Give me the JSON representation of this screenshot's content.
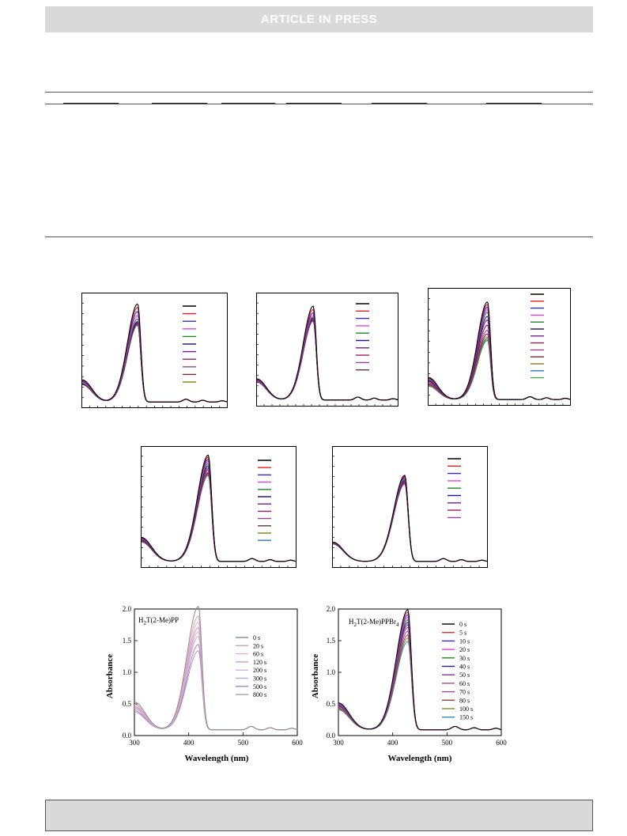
{
  "header": {
    "banner": "ARTICLE  IN  PRESS"
  },
  "colors": {
    "line": [
      "#000000",
      "#e0201e",
      "#2a2ad8",
      "#e040e0",
      "#1c8a1c",
      "#2c1a8a",
      "#7a1a8a",
      "#a01a50",
      "#9a40a0",
      "#6a3030",
      "#8a8a20",
      "#3070c0",
      "#40b040"
    ]
  },
  "chart_data": [
    {
      "type": "line",
      "panel": "a",
      "series_count": 11,
      "peak_x": 415,
      "peaks": [
        1.95,
        1.88,
        1.8,
        1.72,
        1.65,
        1.6,
        1.58,
        1.56,
        1.55,
        1.54,
        1.53
      ],
      "xlim": [
        300,
        600
      ],
      "ylim": [
        0,
        2.2
      ]
    },
    {
      "type": "line",
      "panel": "b",
      "series_count": 10,
      "peak_x": 420,
      "peaks": [
        1.72,
        1.66,
        1.6,
        1.55,
        1.52,
        1.5,
        1.48,
        1.47,
        1.46,
        1.45
      ],
      "xlim": [
        300,
        600
      ],
      "ylim": [
        0,
        2.0
      ]
    },
    {
      "type": "line",
      "panel": "c",
      "series_count": 13,
      "peak_x": 425,
      "peaks": [
        1.9,
        1.85,
        1.8,
        1.75,
        1.7,
        1.62,
        1.55,
        1.45,
        1.35,
        1.28,
        1.22,
        1.18,
        1.15
      ],
      "xlim": [
        300,
        600
      ],
      "ylim": [
        0,
        2.2
      ]
    },
    {
      "type": "line",
      "panel": "d",
      "series_count": 12,
      "peak_x": 430,
      "peaks": [
        2.0,
        1.96,
        1.92,
        1.88,
        1.84,
        1.8,
        1.76,
        1.72,
        1.68,
        1.66,
        1.64,
        1.62
      ],
      "xlim": [
        300,
        600
      ],
      "ylim": [
        0,
        2.2
      ]
    },
    {
      "type": "line",
      "panel": "e",
      "series_count": 9,
      "peak_x": 440,
      "peaks": [
        1.62,
        1.6,
        1.58,
        1.56,
        1.54,
        1.52,
        1.5,
        1.48,
        1.46
      ],
      "xlim": [
        300,
        600
      ],
      "ylim": [
        0,
        2.2
      ]
    },
    {
      "type": "line",
      "panel": "f",
      "annotation": "H2T(2-Me)PP",
      "annotation_main": "H",
      "annotation_sub": "2",
      "annotation_rest": "T(2-Me)PP",
      "xlabel": "Wavelength (nm)",
      "ylabel": "Absorbance",
      "xlim": [
        300,
        600
      ],
      "ylim": [
        0,
        2.0
      ],
      "xticks": [
        "300",
        "400",
        "500",
        "600"
      ],
      "yticks": [
        "0.0",
        "0.5",
        "1.0",
        "1.5",
        "2.0"
      ],
      "legend": [
        "0 s",
        "20 s",
        "60 s",
        "120 s",
        "200 s",
        "300 s",
        "500 s",
        "800 s"
      ],
      "series": [
        {
          "name": "0 s",
          "peak": 1.95
        },
        {
          "name": "20 s",
          "peak": 1.8
        },
        {
          "name": "60 s",
          "peak": 1.7
        },
        {
          "name": "120 s",
          "peak": 1.62
        },
        {
          "name": "200 s",
          "peak": 1.55
        },
        {
          "name": "300 s",
          "peak": 1.48
        },
        {
          "name": "500 s",
          "peak": 1.35
        },
        {
          "name": "800 s",
          "peak": 1.25
        }
      ]
    },
    {
      "type": "line",
      "panel": "g",
      "annotation": "H2T(2-Me)PPBr4",
      "annotation_main": "H",
      "annotation_sub": "2",
      "annotation_rest": "T(2-Me)PPBr",
      "annotation_sub2": "4",
      "xlabel": "Wavelength (nm)",
      "ylabel": "Absorbance",
      "xlim": [
        300,
        600
      ],
      "ylim": [
        0,
        2.0
      ],
      "xticks": [
        "300",
        "400",
        "500",
        "600"
      ],
      "yticks": [
        "0.0",
        "0.5",
        "1.0",
        "1.5",
        "2.0"
      ],
      "legend": [
        "0 s",
        "5 s",
        "10 s",
        "20 s",
        "30 s",
        "40 s",
        "50 s",
        "60 s",
        "70 s",
        "80 s",
        "100 s",
        "150 s"
      ],
      "series": [
        {
          "name": "0 s",
          "peak": 1.9
        },
        {
          "name": "5 s",
          "peak": 1.86
        },
        {
          "name": "10 s",
          "peak": 1.82
        },
        {
          "name": "20 s",
          "peak": 1.78
        },
        {
          "name": "30 s",
          "peak": 1.74
        },
        {
          "name": "40 s",
          "peak": 1.7
        },
        {
          "name": "50 s",
          "peak": 1.66
        },
        {
          "name": "60 s",
          "peak": 1.62
        },
        {
          "name": "70 s",
          "peak": 1.56
        },
        {
          "name": "80 s",
          "peak": 1.5
        },
        {
          "name": "100 s",
          "peak": 1.45
        },
        {
          "name": "150 s",
          "peak": 1.4
        }
      ]
    }
  ]
}
